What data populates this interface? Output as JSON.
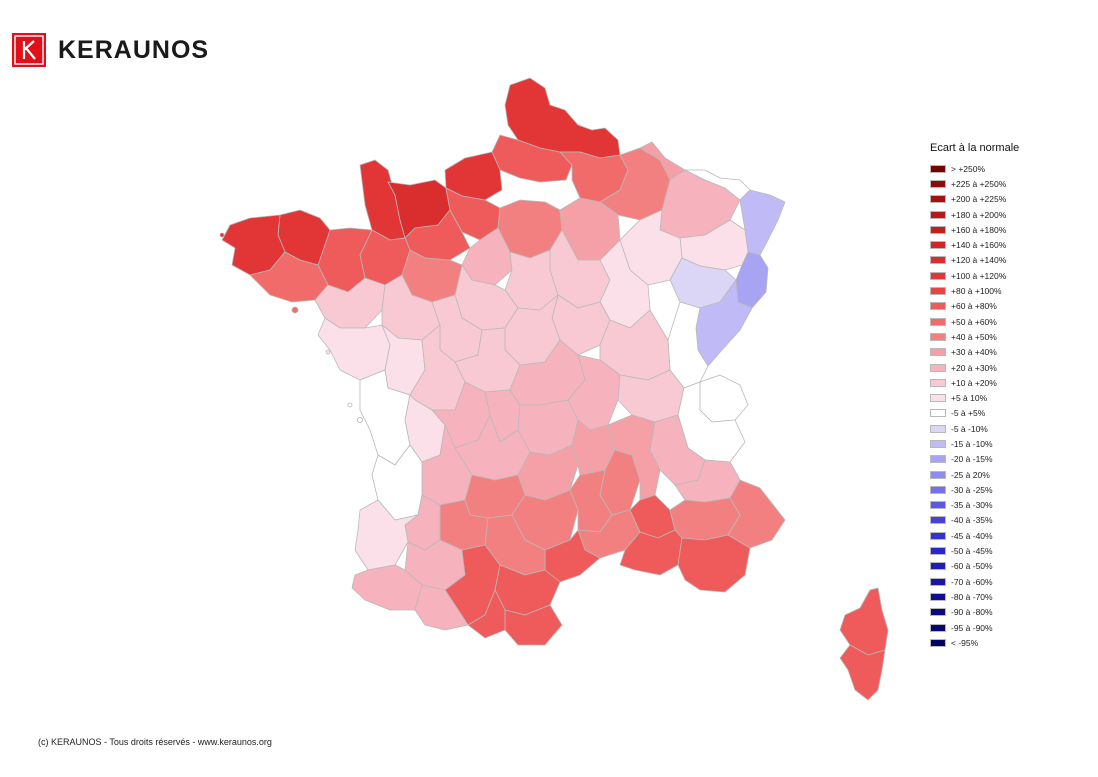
{
  "brand": {
    "name": "KERAUNOS",
    "logo_color": "#e0101a"
  },
  "legend": {
    "title": "Ecart à la normale",
    "items": [
      {
        "label": "> +250%",
        "color": "#7a0000"
      },
      {
        "label": "+225 à +250%",
        "color": "#8e0a0a"
      },
      {
        "label": "+200 à +225%",
        "color": "#a11212"
      },
      {
        "label": "+180 à +200%",
        "color": "#b41a1a"
      },
      {
        "label": "+160 à +180%",
        "color": "#c21f1f"
      },
      {
        "label": "+140 à +160%",
        "color": "#cf2626"
      },
      {
        "label": "+120 à +140%",
        "color": "#da2e2e"
      },
      {
        "label": "+100 à +120%",
        "color": "#e23636"
      },
      {
        "label": "+80 à +100%",
        "color": "#e94444"
      },
      {
        "label": "+60 à +80%",
        "color": "#ef5a5a"
      },
      {
        "label": "+50 à +60%",
        "color": "#f26b6b"
      },
      {
        "label": "+40 à +50%",
        "color": "#f38080"
      },
      {
        "label": "+30 à +40%",
        "color": "#f4a0a6"
      },
      {
        "label": "+20 à +30%",
        "color": "#f6b3bd"
      },
      {
        "label": "+10 à +20%",
        "color": "#f8c9d3"
      },
      {
        "label": "+5 à 10%",
        "color": "#fbe0ea"
      },
      {
        "label": "-5 à +5%",
        "color": "#ffffff"
      },
      {
        "label": "-5 à -10%",
        "color": "#dcd6f6"
      },
      {
        "label": "-15 à -10%",
        "color": "#c0bbf6"
      },
      {
        "label": "-20 à -15%",
        "color": "#a8a4f4"
      },
      {
        "label": "-25 à 20%",
        "color": "#8f8bee"
      },
      {
        "label": "-30 à -25%",
        "color": "#7570ec"
      },
      {
        "label": "-35 à -30%",
        "color": "#5c57e6"
      },
      {
        "label": "-40 à -35%",
        "color": "#4640e0"
      },
      {
        "label": "-45 à -40%",
        "color": "#3530d6"
      },
      {
        "label": "-50 à -45%",
        "color": "#2a26c8"
      },
      {
        "label": "-60 à -50%",
        "color": "#201cb8"
      },
      {
        "label": "-70 à -60%",
        "color": "#1814a6"
      },
      {
        "label": "-80 à -70%",
        "color": "#120e94"
      },
      {
        "label": "-90 à -80%",
        "color": "#0c0a82"
      },
      {
        "label": "-95 à -90%",
        "color": "#080670"
      },
      {
        "label": "< -95%",
        "color": "#040360"
      }
    ]
  },
  "footer": {
    "text": "(c) KERAUNOS - Tous droits réservés - www.keraunos.org"
  }
}
